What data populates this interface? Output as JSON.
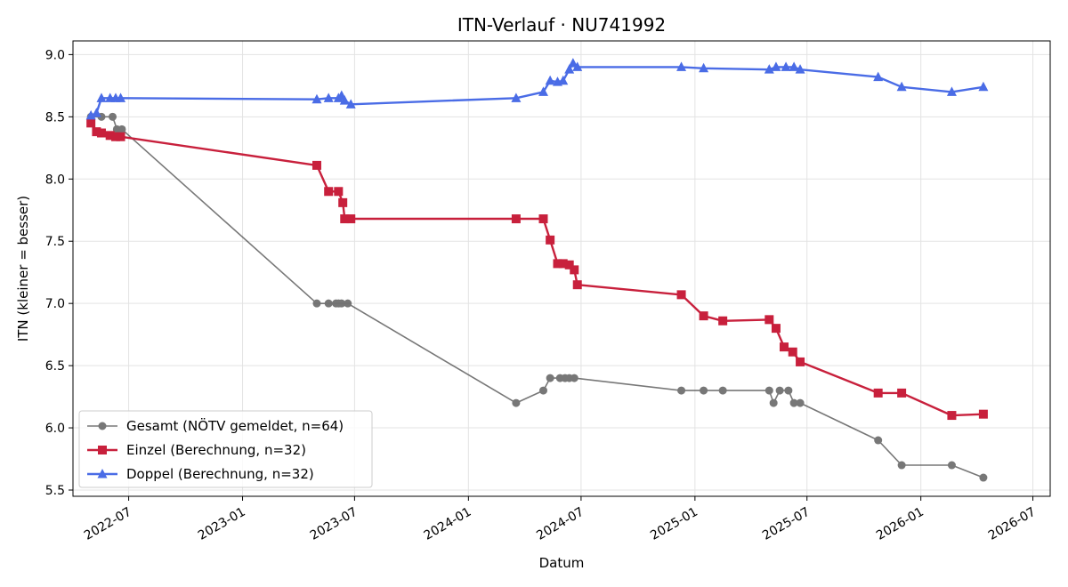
{
  "chart_data": {
    "type": "line",
    "title": "ITN-Verlauf · NU741992",
    "xlabel": "Datum",
    "ylabel": "ITN  (kleiner = besser)",
    "xlim": [
      "2022-04-02",
      "2026-07-29"
    ],
    "ylim": [
      5.45,
      9.11
    ],
    "x_ticks": [
      "2022-07",
      "2023-01",
      "2023-07",
      "2024-01",
      "2024-07",
      "2025-01",
      "2025-07",
      "2026-01",
      "2026-07"
    ],
    "y_ticks": [
      "5.5",
      "6.0",
      "6.5",
      "7.0",
      "7.5",
      "8.0",
      "8.5",
      "9.0"
    ],
    "grid": true,
    "legend_position": "lower-left",
    "series": [
      {
        "name": "Gesamt (NÖTV gemeldet, n=64)",
        "color": "#444444",
        "marker": "circle",
        "points": [
          [
            "2022-05-01",
            8.5
          ],
          [
            "2022-05-18",
            8.5
          ],
          [
            "2022-06-05",
            8.5
          ],
          [
            "2022-06-12",
            8.4
          ],
          [
            "2022-06-20",
            8.4
          ],
          [
            "2023-05-01",
            7.0
          ],
          [
            "2023-05-20",
            7.0
          ],
          [
            "2023-06-01",
            7.0
          ],
          [
            "2023-06-05",
            7.0
          ],
          [
            "2023-06-10",
            7.0
          ],
          [
            "2023-06-20",
            7.0
          ],
          [
            "2024-03-18",
            6.2
          ],
          [
            "2024-05-01",
            6.3
          ],
          [
            "2024-05-12",
            6.4
          ],
          [
            "2024-05-28",
            6.4
          ],
          [
            "2024-06-05",
            6.4
          ],
          [
            "2024-06-12",
            6.4
          ],
          [
            "2024-06-20",
            6.4
          ],
          [
            "2024-12-10",
            6.3
          ],
          [
            "2025-01-15",
            6.3
          ],
          [
            "2025-02-15",
            6.3
          ],
          [
            "2025-05-01",
            6.3
          ],
          [
            "2025-05-08",
            6.2
          ],
          [
            "2025-05-18",
            6.3
          ],
          [
            "2025-06-01",
            6.3
          ],
          [
            "2025-06-10",
            6.2
          ],
          [
            "2025-06-20",
            6.2
          ],
          [
            "2025-10-24",
            5.9
          ],
          [
            "2025-12-01",
            5.7
          ],
          [
            "2026-02-20",
            5.7
          ],
          [
            "2026-04-12",
            5.6
          ]
        ]
      },
      {
        "name": "Einzel (Berechnung, n=32)",
        "color": "#c8203c",
        "marker": "square",
        "points": [
          [
            "2022-05-01",
            8.45
          ],
          [
            "2022-05-10",
            8.38
          ],
          [
            "2022-05-18",
            8.37
          ],
          [
            "2022-06-01",
            8.35
          ],
          [
            "2022-06-10",
            8.34
          ],
          [
            "2022-06-18",
            8.34
          ],
          [
            "2023-05-01",
            8.11
          ],
          [
            "2023-05-20",
            7.9
          ],
          [
            "2023-06-05",
            7.9
          ],
          [
            "2023-06-12",
            7.81
          ],
          [
            "2023-06-15",
            7.68
          ],
          [
            "2023-06-25",
            7.68
          ],
          [
            "2024-03-18",
            7.68
          ],
          [
            "2024-05-01",
            7.68
          ],
          [
            "2024-05-12",
            7.51
          ],
          [
            "2024-05-24",
            7.32
          ],
          [
            "2024-06-02",
            7.32
          ],
          [
            "2024-06-12",
            7.31
          ],
          [
            "2024-06-20",
            7.27
          ],
          [
            "2024-06-25",
            7.15
          ],
          [
            "2024-12-10",
            7.07
          ],
          [
            "2025-01-15",
            6.9
          ],
          [
            "2025-02-15",
            6.86
          ],
          [
            "2025-05-01",
            6.87
          ],
          [
            "2025-05-12",
            6.8
          ],
          [
            "2025-05-25",
            6.65
          ],
          [
            "2025-06-08",
            6.61
          ],
          [
            "2025-06-20",
            6.53
          ],
          [
            "2025-10-24",
            6.28
          ],
          [
            "2025-12-01",
            6.28
          ],
          [
            "2026-02-20",
            6.1
          ],
          [
            "2026-04-12",
            6.11
          ]
        ]
      },
      {
        "name": "Doppel (Berechnung, n=32)",
        "color": "#4a6ce6",
        "marker": "triangle",
        "points": [
          [
            "2022-05-01",
            8.51
          ],
          [
            "2022-05-10",
            8.53
          ],
          [
            "2022-05-18",
            8.65
          ],
          [
            "2022-06-01",
            8.65
          ],
          [
            "2022-06-10",
            8.65
          ],
          [
            "2022-06-18",
            8.65
          ],
          [
            "2023-05-01",
            8.64
          ],
          [
            "2023-05-20",
            8.65
          ],
          [
            "2023-06-05",
            8.65
          ],
          [
            "2023-06-10",
            8.67
          ],
          [
            "2023-06-15",
            8.63
          ],
          [
            "2023-06-25",
            8.6
          ],
          [
            "2024-03-18",
            8.65
          ],
          [
            "2024-05-01",
            8.7
          ],
          [
            "2024-05-12",
            8.79
          ],
          [
            "2024-05-24",
            8.78
          ],
          [
            "2024-06-02",
            8.79
          ],
          [
            "2024-06-12",
            8.88
          ],
          [
            "2024-06-18",
            8.93
          ],
          [
            "2024-06-25",
            8.9
          ],
          [
            "2024-12-10",
            8.9
          ],
          [
            "2025-01-15",
            8.89
          ],
          [
            "2025-05-01",
            8.88
          ],
          [
            "2025-05-12",
            8.9
          ],
          [
            "2025-05-28",
            8.9
          ],
          [
            "2025-06-10",
            8.9
          ],
          [
            "2025-06-20",
            8.88
          ],
          [
            "2025-10-24",
            8.82
          ],
          [
            "2025-12-01",
            8.74
          ],
          [
            "2026-02-20",
            8.7
          ],
          [
            "2026-04-12",
            8.74
          ]
        ]
      }
    ]
  }
}
